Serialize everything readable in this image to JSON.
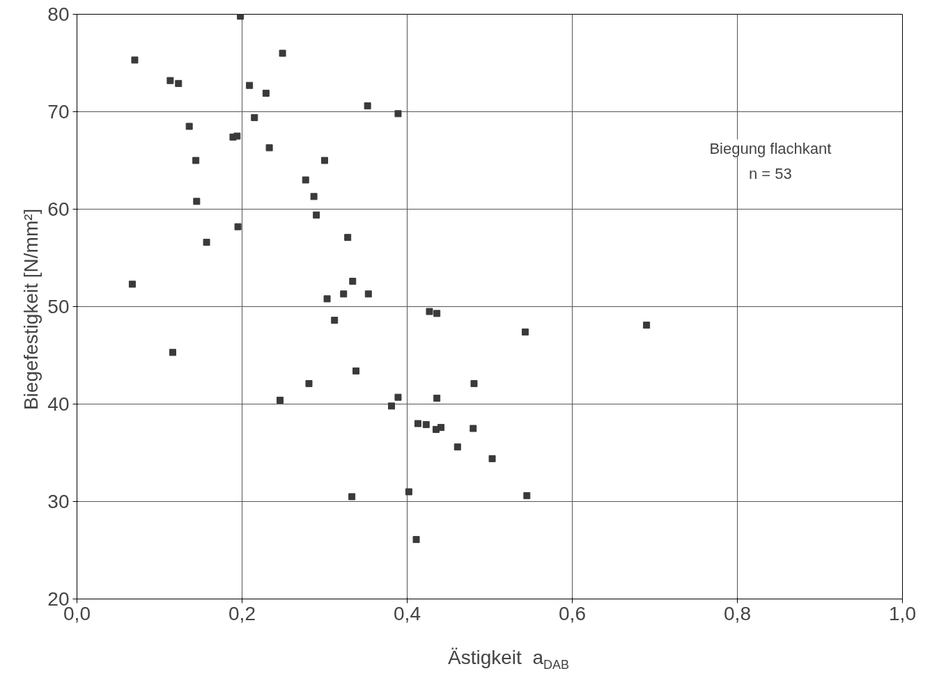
{
  "chart_data": {
    "type": "scatter",
    "xlabel": "Ästigkeit  a$_{DAB}$",
    "ylabel": "Biegefestigkeit  [N/mm²]",
    "annotations": [
      "Biegung flachkant",
      "n = 53"
    ],
    "x": [
      0.07,
      0.113,
      0.123,
      0.136,
      0.144,
      0.145,
      0.157,
      0.067,
      0.116,
      0.198,
      0.189,
      0.194,
      0.195,
      0.209,
      0.215,
      0.229,
      0.233,
      0.249,
      0.246,
      0.277,
      0.287,
      0.29,
      0.3,
      0.281,
      0.303,
      0.312,
      0.323,
      0.328,
      0.334,
      0.338,
      0.333,
      0.353,
      0.352,
      0.389,
      0.381,
      0.389,
      0.402,
      0.411,
      0.413,
      0.423,
      0.427,
      0.436,
      0.435,
      0.436,
      0.441,
      0.461,
      0.48,
      0.481,
      0.503,
      0.543,
      0.545,
      0.69
    ],
    "series": [
      {
        "color": "#3a3a3a",
        "values": [
          75.3,
          73.2,
          72.9,
          68.5,
          65.0,
          60.8,
          56.6,
          52.3,
          45.3,
          79.8,
          67.4,
          67.5,
          58.2,
          72.7,
          69.4,
          71.9,
          66.3,
          76.0,
          40.4,
          63.0,
          61.3,
          59.4,
          65.0,
          42.1,
          50.8,
          48.6,
          51.3,
          57.1,
          52.6,
          43.4,
          30.5,
          51.3,
          70.6,
          69.8,
          39.8,
          40.7,
          31.0,
          26.1,
          38.0,
          37.9,
          49.5,
          49.3,
          37.4,
          40.6,
          37.6,
          35.6,
          37.5,
          42.1,
          34.4,
          47.4,
          30.6,
          48.1
        ]
      }
    ],
    "marker": "square",
    "grid": true,
    "xlim": [
      0,
      1
    ],
    "ylim": [
      20,
      80
    ],
    "xticks": [
      {
        "value": 0,
        "label": "0,0"
      },
      {
        "value": 0.2,
        "label": "0,2"
      },
      {
        "value": 0.4,
        "label": "0,4"
      },
      {
        "value": 0.6,
        "label": "0,6"
      },
      {
        "value": 0.8,
        "label": "0,8"
      },
      {
        "value": 1,
        "label": "1,0"
      }
    ],
    "yticks": [
      20,
      30,
      40,
      50,
      60,
      70,
      80
    ]
  }
}
